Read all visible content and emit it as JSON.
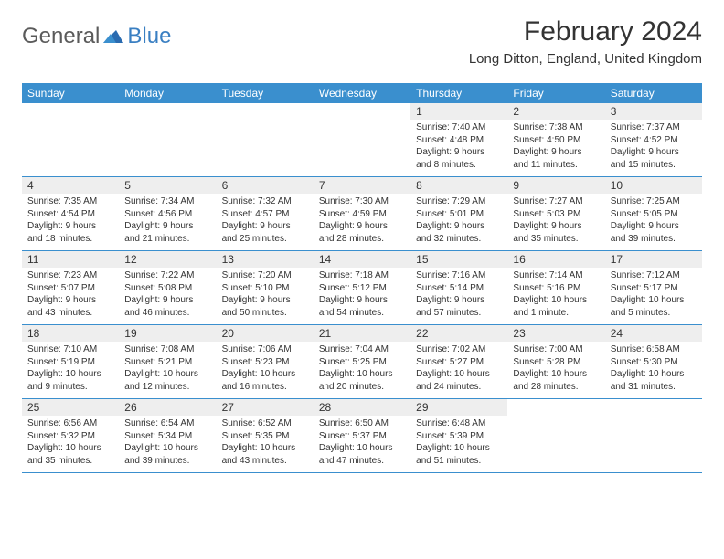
{
  "logo": {
    "text_general": "General",
    "text_blue": "Blue"
  },
  "title": "February 2024",
  "location": "Long Ditton, England, United Kingdom",
  "weekdays": [
    "Sunday",
    "Monday",
    "Tuesday",
    "Wednesday",
    "Thursday",
    "Friday",
    "Saturday"
  ],
  "colors": {
    "header_bg": "#3a8fce",
    "header_text": "#ffffff",
    "daynum_bg": "#eeeeee",
    "text": "#333333",
    "logo_gray": "#5a5a5a",
    "logo_blue": "#3a7fc2",
    "border": "#3a8fce"
  },
  "fonts": {
    "title_size": 30,
    "location_size": 15,
    "weekday_size": 12,
    "daynum_size": 12,
    "info_size": 10
  },
  "weeks": [
    [
      {
        "n": "",
        "sunrise": "",
        "sunset": "",
        "daylight1": "",
        "daylight2": ""
      },
      {
        "n": "",
        "sunrise": "",
        "sunset": "",
        "daylight1": "",
        "daylight2": ""
      },
      {
        "n": "",
        "sunrise": "",
        "sunset": "",
        "daylight1": "",
        "daylight2": ""
      },
      {
        "n": "",
        "sunrise": "",
        "sunset": "",
        "daylight1": "",
        "daylight2": ""
      },
      {
        "n": "1",
        "sunrise": "Sunrise: 7:40 AM",
        "sunset": "Sunset: 4:48 PM",
        "daylight1": "Daylight: 9 hours",
        "daylight2": "and 8 minutes."
      },
      {
        "n": "2",
        "sunrise": "Sunrise: 7:38 AM",
        "sunset": "Sunset: 4:50 PM",
        "daylight1": "Daylight: 9 hours",
        "daylight2": "and 11 minutes."
      },
      {
        "n": "3",
        "sunrise": "Sunrise: 7:37 AM",
        "sunset": "Sunset: 4:52 PM",
        "daylight1": "Daylight: 9 hours",
        "daylight2": "and 15 minutes."
      }
    ],
    [
      {
        "n": "4",
        "sunrise": "Sunrise: 7:35 AM",
        "sunset": "Sunset: 4:54 PM",
        "daylight1": "Daylight: 9 hours",
        "daylight2": "and 18 minutes."
      },
      {
        "n": "5",
        "sunrise": "Sunrise: 7:34 AM",
        "sunset": "Sunset: 4:56 PM",
        "daylight1": "Daylight: 9 hours",
        "daylight2": "and 21 minutes."
      },
      {
        "n": "6",
        "sunrise": "Sunrise: 7:32 AM",
        "sunset": "Sunset: 4:57 PM",
        "daylight1": "Daylight: 9 hours",
        "daylight2": "and 25 minutes."
      },
      {
        "n": "7",
        "sunrise": "Sunrise: 7:30 AM",
        "sunset": "Sunset: 4:59 PM",
        "daylight1": "Daylight: 9 hours",
        "daylight2": "and 28 minutes."
      },
      {
        "n": "8",
        "sunrise": "Sunrise: 7:29 AM",
        "sunset": "Sunset: 5:01 PM",
        "daylight1": "Daylight: 9 hours",
        "daylight2": "and 32 minutes."
      },
      {
        "n": "9",
        "sunrise": "Sunrise: 7:27 AM",
        "sunset": "Sunset: 5:03 PM",
        "daylight1": "Daylight: 9 hours",
        "daylight2": "and 35 minutes."
      },
      {
        "n": "10",
        "sunrise": "Sunrise: 7:25 AM",
        "sunset": "Sunset: 5:05 PM",
        "daylight1": "Daylight: 9 hours",
        "daylight2": "and 39 minutes."
      }
    ],
    [
      {
        "n": "11",
        "sunrise": "Sunrise: 7:23 AM",
        "sunset": "Sunset: 5:07 PM",
        "daylight1": "Daylight: 9 hours",
        "daylight2": "and 43 minutes."
      },
      {
        "n": "12",
        "sunrise": "Sunrise: 7:22 AM",
        "sunset": "Sunset: 5:08 PM",
        "daylight1": "Daylight: 9 hours",
        "daylight2": "and 46 minutes."
      },
      {
        "n": "13",
        "sunrise": "Sunrise: 7:20 AM",
        "sunset": "Sunset: 5:10 PM",
        "daylight1": "Daylight: 9 hours",
        "daylight2": "and 50 minutes."
      },
      {
        "n": "14",
        "sunrise": "Sunrise: 7:18 AM",
        "sunset": "Sunset: 5:12 PM",
        "daylight1": "Daylight: 9 hours",
        "daylight2": "and 54 minutes."
      },
      {
        "n": "15",
        "sunrise": "Sunrise: 7:16 AM",
        "sunset": "Sunset: 5:14 PM",
        "daylight1": "Daylight: 9 hours",
        "daylight2": "and 57 minutes."
      },
      {
        "n": "16",
        "sunrise": "Sunrise: 7:14 AM",
        "sunset": "Sunset: 5:16 PM",
        "daylight1": "Daylight: 10 hours",
        "daylight2": "and 1 minute."
      },
      {
        "n": "17",
        "sunrise": "Sunrise: 7:12 AM",
        "sunset": "Sunset: 5:17 PM",
        "daylight1": "Daylight: 10 hours",
        "daylight2": "and 5 minutes."
      }
    ],
    [
      {
        "n": "18",
        "sunrise": "Sunrise: 7:10 AM",
        "sunset": "Sunset: 5:19 PM",
        "daylight1": "Daylight: 10 hours",
        "daylight2": "and 9 minutes."
      },
      {
        "n": "19",
        "sunrise": "Sunrise: 7:08 AM",
        "sunset": "Sunset: 5:21 PM",
        "daylight1": "Daylight: 10 hours",
        "daylight2": "and 12 minutes."
      },
      {
        "n": "20",
        "sunrise": "Sunrise: 7:06 AM",
        "sunset": "Sunset: 5:23 PM",
        "daylight1": "Daylight: 10 hours",
        "daylight2": "and 16 minutes."
      },
      {
        "n": "21",
        "sunrise": "Sunrise: 7:04 AM",
        "sunset": "Sunset: 5:25 PM",
        "daylight1": "Daylight: 10 hours",
        "daylight2": "and 20 minutes."
      },
      {
        "n": "22",
        "sunrise": "Sunrise: 7:02 AM",
        "sunset": "Sunset: 5:27 PM",
        "daylight1": "Daylight: 10 hours",
        "daylight2": "and 24 minutes."
      },
      {
        "n": "23",
        "sunrise": "Sunrise: 7:00 AM",
        "sunset": "Sunset: 5:28 PM",
        "daylight1": "Daylight: 10 hours",
        "daylight2": "and 28 minutes."
      },
      {
        "n": "24",
        "sunrise": "Sunrise: 6:58 AM",
        "sunset": "Sunset: 5:30 PM",
        "daylight1": "Daylight: 10 hours",
        "daylight2": "and 31 minutes."
      }
    ],
    [
      {
        "n": "25",
        "sunrise": "Sunrise: 6:56 AM",
        "sunset": "Sunset: 5:32 PM",
        "daylight1": "Daylight: 10 hours",
        "daylight2": "and 35 minutes."
      },
      {
        "n": "26",
        "sunrise": "Sunrise: 6:54 AM",
        "sunset": "Sunset: 5:34 PM",
        "daylight1": "Daylight: 10 hours",
        "daylight2": "and 39 minutes."
      },
      {
        "n": "27",
        "sunrise": "Sunrise: 6:52 AM",
        "sunset": "Sunset: 5:35 PM",
        "daylight1": "Daylight: 10 hours",
        "daylight2": "and 43 minutes."
      },
      {
        "n": "28",
        "sunrise": "Sunrise: 6:50 AM",
        "sunset": "Sunset: 5:37 PM",
        "daylight1": "Daylight: 10 hours",
        "daylight2": "and 47 minutes."
      },
      {
        "n": "29",
        "sunrise": "Sunrise: 6:48 AM",
        "sunset": "Sunset: 5:39 PM",
        "daylight1": "Daylight: 10 hours",
        "daylight2": "and 51 minutes."
      },
      {
        "n": "",
        "sunrise": "",
        "sunset": "",
        "daylight1": "",
        "daylight2": ""
      },
      {
        "n": "",
        "sunrise": "",
        "sunset": "",
        "daylight1": "",
        "daylight2": ""
      }
    ]
  ]
}
